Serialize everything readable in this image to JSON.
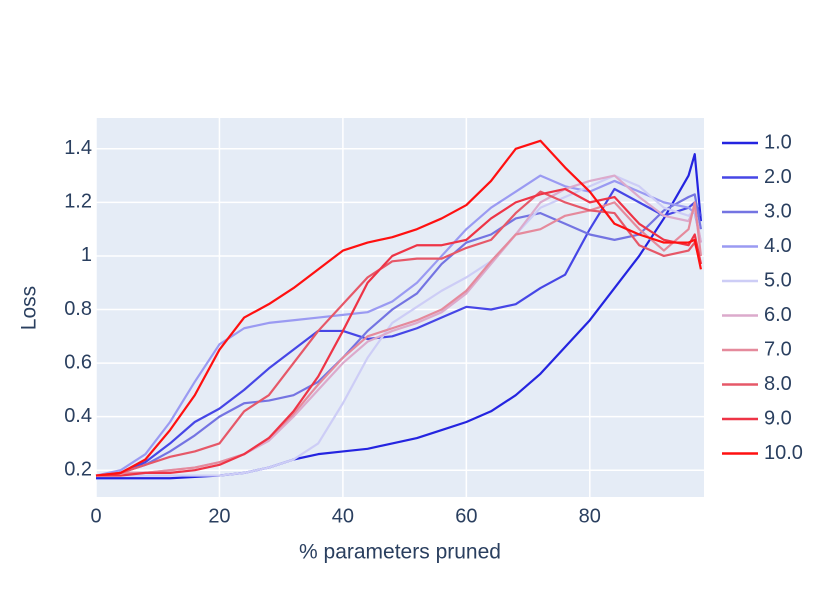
{
  "chart_data": {
    "type": "line",
    "x_label": "% parameters pruned",
    "y_label": "Loss",
    "x": [
      0,
      4,
      8,
      12,
      16,
      20,
      24,
      28,
      32,
      36,
      40,
      44,
      48,
      52,
      56,
      60,
      64,
      68,
      72,
      76,
      80,
      84,
      88,
      92,
      96,
      97,
      98
    ],
    "xlim": [
      0,
      98.5
    ],
    "xticks": [
      0,
      20,
      40,
      60,
      80
    ],
    "ylim": [
      0.1,
      1.515
    ],
    "yticks": [
      0.2,
      0.4,
      0.6,
      0.8,
      1,
      1.2,
      1.4
    ],
    "grid": true,
    "legend": "right",
    "background": "#e5ecf6",
    "series": [
      {
        "name": "1.0",
        "color": "#2424e0",
        "values": [
          0.17,
          0.17,
          0.17,
          0.17,
          0.175,
          0.18,
          0.19,
          0.21,
          0.24,
          0.26,
          0.27,
          0.28,
          0.3,
          0.32,
          0.35,
          0.38,
          0.42,
          0.48,
          0.56,
          0.66,
          0.76,
          0.88,
          1.0,
          1.14,
          1.3,
          1.38,
          1.13
        ]
      },
      {
        "name": "2.0",
        "color": "#4646e6",
        "values": [
          0.18,
          0.19,
          0.23,
          0.3,
          0.38,
          0.43,
          0.5,
          0.58,
          0.65,
          0.72,
          0.72,
          0.69,
          0.7,
          0.73,
          0.77,
          0.81,
          0.8,
          0.82,
          0.88,
          0.93,
          1.1,
          1.25,
          1.2,
          1.15,
          1.18,
          1.2,
          1.15
        ]
      },
      {
        "name": "3.0",
        "color": "#7474e2",
        "values": [
          0.18,
          0.19,
          0.22,
          0.27,
          0.33,
          0.4,
          0.45,
          0.46,
          0.48,
          0.53,
          0.62,
          0.72,
          0.8,
          0.86,
          0.97,
          1.05,
          1.08,
          1.14,
          1.16,
          1.12,
          1.08,
          1.06,
          1.08,
          1.17,
          1.22,
          1.23,
          1.1
        ]
      },
      {
        "name": "4.0",
        "color": "#9a9af2",
        "values": [
          0.18,
          0.2,
          0.26,
          0.38,
          0.53,
          0.67,
          0.73,
          0.75,
          0.76,
          0.77,
          0.78,
          0.79,
          0.83,
          0.9,
          1.0,
          1.1,
          1.18,
          1.24,
          1.3,
          1.26,
          1.24,
          1.28,
          1.24,
          1.2,
          1.18,
          1.16,
          1.05
        ]
      },
      {
        "name": "5.0",
        "color": "#cdcdf6",
        "values": [
          0.18,
          0.18,
          0.18,
          0.18,
          0.18,
          0.18,
          0.19,
          0.21,
          0.24,
          0.3,
          0.45,
          0.62,
          0.75,
          0.81,
          0.87,
          0.92,
          0.98,
          1.08,
          1.18,
          1.22,
          1.26,
          1.3,
          1.26,
          1.18,
          1.15,
          1.17,
          1.05
        ]
      },
      {
        "name": "6.0",
        "color": "#dcaacc",
        "values": [
          0.18,
          0.19,
          0.19,
          0.2,
          0.21,
          0.23,
          0.26,
          0.31,
          0.4,
          0.5,
          0.6,
          0.68,
          0.72,
          0.75,
          0.79,
          0.86,
          0.97,
          1.08,
          1.2,
          1.25,
          1.28,
          1.3,
          1.22,
          1.15,
          1.13,
          1.18,
          1.05
        ]
      },
      {
        "name": "7.0",
        "color": "#e58a9c",
        "values": [
          0.18,
          0.19,
          0.19,
          0.2,
          0.21,
          0.23,
          0.26,
          0.32,
          0.41,
          0.52,
          0.62,
          0.7,
          0.73,
          0.76,
          0.8,
          0.87,
          0.98,
          1.08,
          1.1,
          1.15,
          1.17,
          1.2,
          1.1,
          1.02,
          1.1,
          1.2,
          1.0
        ]
      },
      {
        "name": "8.0",
        "color": "#e65868",
        "values": [
          0.18,
          0.19,
          0.22,
          0.25,
          0.27,
          0.3,
          0.42,
          0.48,
          0.6,
          0.72,
          0.82,
          0.92,
          0.98,
          0.99,
          0.99,
          1.03,
          1.06,
          1.16,
          1.24,
          1.2,
          1.17,
          1.16,
          1.04,
          1.0,
          1.02,
          1.05,
          0.97
        ]
      },
      {
        "name": "9.0",
        "color": "#ee3446",
        "values": [
          0.18,
          0.18,
          0.19,
          0.19,
          0.2,
          0.22,
          0.26,
          0.32,
          0.42,
          0.55,
          0.72,
          0.9,
          1.0,
          1.04,
          1.04,
          1.06,
          1.14,
          1.2,
          1.23,
          1.25,
          1.2,
          1.22,
          1.12,
          1.06,
          1.04,
          1.08,
          0.97
        ]
      },
      {
        "name": "10.0",
        "color": "#ff1010",
        "values": [
          0.18,
          0.19,
          0.24,
          0.35,
          0.48,
          0.65,
          0.77,
          0.82,
          0.88,
          0.95,
          1.02,
          1.05,
          1.07,
          1.1,
          1.14,
          1.19,
          1.28,
          1.4,
          1.43,
          1.33,
          1.24,
          1.12,
          1.08,
          1.05,
          1.05,
          1.06,
          0.95
        ]
      }
    ]
  }
}
